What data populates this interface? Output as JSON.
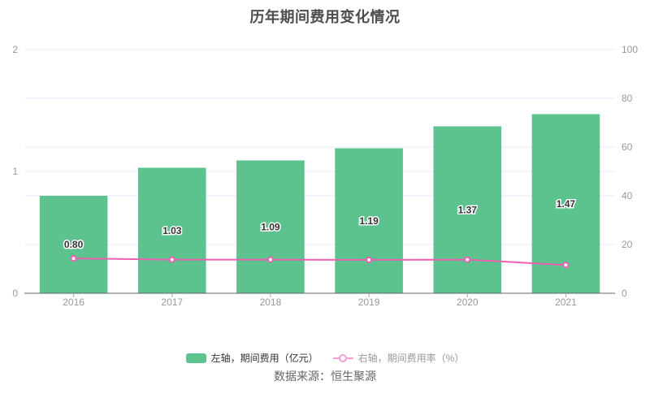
{
  "source": "数据来源：恒生聚源",
  "chart_data": {
    "type": "bar",
    "title": "历年期间费用变化情况",
    "categories": [
      "2016",
      "2017",
      "2018",
      "2019",
      "2020",
      "2021"
    ],
    "series": [
      {
        "name": "左轴，期间费用（亿元）",
        "type": "bar",
        "axis": "left",
        "values": [
          0.8,
          1.03,
          1.09,
          1.19,
          1.37,
          1.47
        ],
        "labels": [
          "0.80",
          "1.03",
          "1.09",
          "1.19",
          "1.37",
          "1.47"
        ],
        "color": "#5CC28E"
      },
      {
        "name": "右轴，期间费用率（%）",
        "type": "line",
        "axis": "right",
        "values": [
          14.3,
          13.8,
          13.8,
          13.7,
          13.8,
          11.6
        ],
        "color": "#EC5FB1",
        "legend_color": "#F2A0D2"
      }
    ],
    "left_axis": {
      "min": 0,
      "max": 2,
      "ticks": [
        0,
        1,
        2
      ],
      "tick_labels": [
        "0",
        "1",
        "2"
      ]
    },
    "right_axis": {
      "min": 0,
      "max": 100,
      "ticks": [
        0,
        20,
        40,
        60,
        80,
        100
      ],
      "tick_labels": [
        "0",
        "20",
        "40",
        "60",
        "80",
        "100"
      ]
    },
    "grid": true,
    "legend_position": "bottom",
    "style": {
      "grid_color": "#E6EBF5",
      "axis_line_color": "#666666",
      "tick_label_color": "#999999",
      "bar_label_color": "#333333",
      "bar_label_stroke": "#FFFFFF",
      "background": "#FFFFFF"
    }
  }
}
